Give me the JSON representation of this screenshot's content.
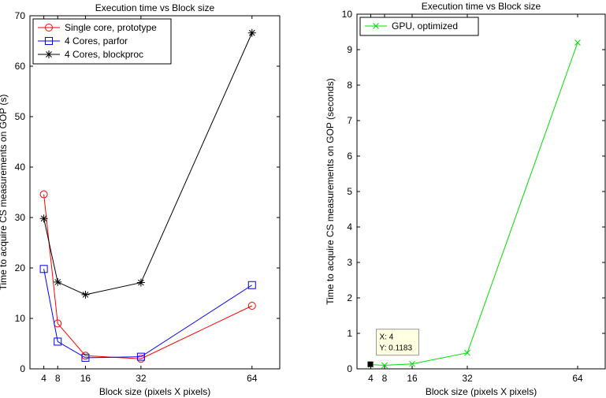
{
  "chart_data": [
    {
      "type": "line",
      "title": "Execution time vs Block size",
      "xlabel": "Block size (pixels X pixels)",
      "ylabel": "Time to acquire CS measurements on GOP (s)",
      "xlim": [
        0,
        72
      ],
      "ylim": [
        0,
        70
      ],
      "xticks": [
        4,
        8,
        16,
        32,
        64
      ],
      "yticks": [
        0,
        10,
        20,
        30,
        40,
        50,
        60,
        70
      ],
      "grid": false,
      "legend_position": "top-left",
      "x": [
        4,
        8,
        16,
        32,
        64
      ],
      "series": [
        {
          "name": "Single core, prototype",
          "color": "#ff0000",
          "marker": "circle",
          "values": [
            34.6,
            9.0,
            2.6,
            2.0,
            12.5
          ]
        },
        {
          "name": "4 Cores, parfor",
          "color": "#0000ff",
          "marker": "square",
          "values": [
            19.8,
            5.4,
            2.2,
            2.4,
            16.6
          ]
        },
        {
          "name": "4 Cores, blockproc",
          "color": "#000000",
          "marker": "star",
          "values": [
            29.8,
            17.2,
            14.7,
            17.1,
            66.6
          ]
        }
      ]
    },
    {
      "type": "line",
      "title": "Execution time vs Block size",
      "xlabel": "Block size (pixels X pixels)",
      "ylabel": "Time to acquire CS measurements on GOP (seconds)",
      "xlim": [
        0,
        72
      ],
      "ylim": [
        0,
        10
      ],
      "xticks": [
        4,
        8,
        16,
        32,
        64
      ],
      "yticks": [
        0,
        1,
        2,
        3,
        4,
        5,
        6,
        7,
        8,
        9,
        10
      ],
      "grid": false,
      "legend_position": "top-left",
      "x": [
        4,
        8,
        16,
        32,
        64
      ],
      "series": [
        {
          "name": "GPU, optimized",
          "color": "#00dd00",
          "marker": "x",
          "values": [
            0.1183,
            0.1,
            0.14,
            0.45,
            9.2
          ]
        }
      ],
      "datatip": {
        "x_text": "X: 4",
        "y_text": "Y: 0.1183",
        "x": 4,
        "y": 0.1183
      }
    }
  ]
}
